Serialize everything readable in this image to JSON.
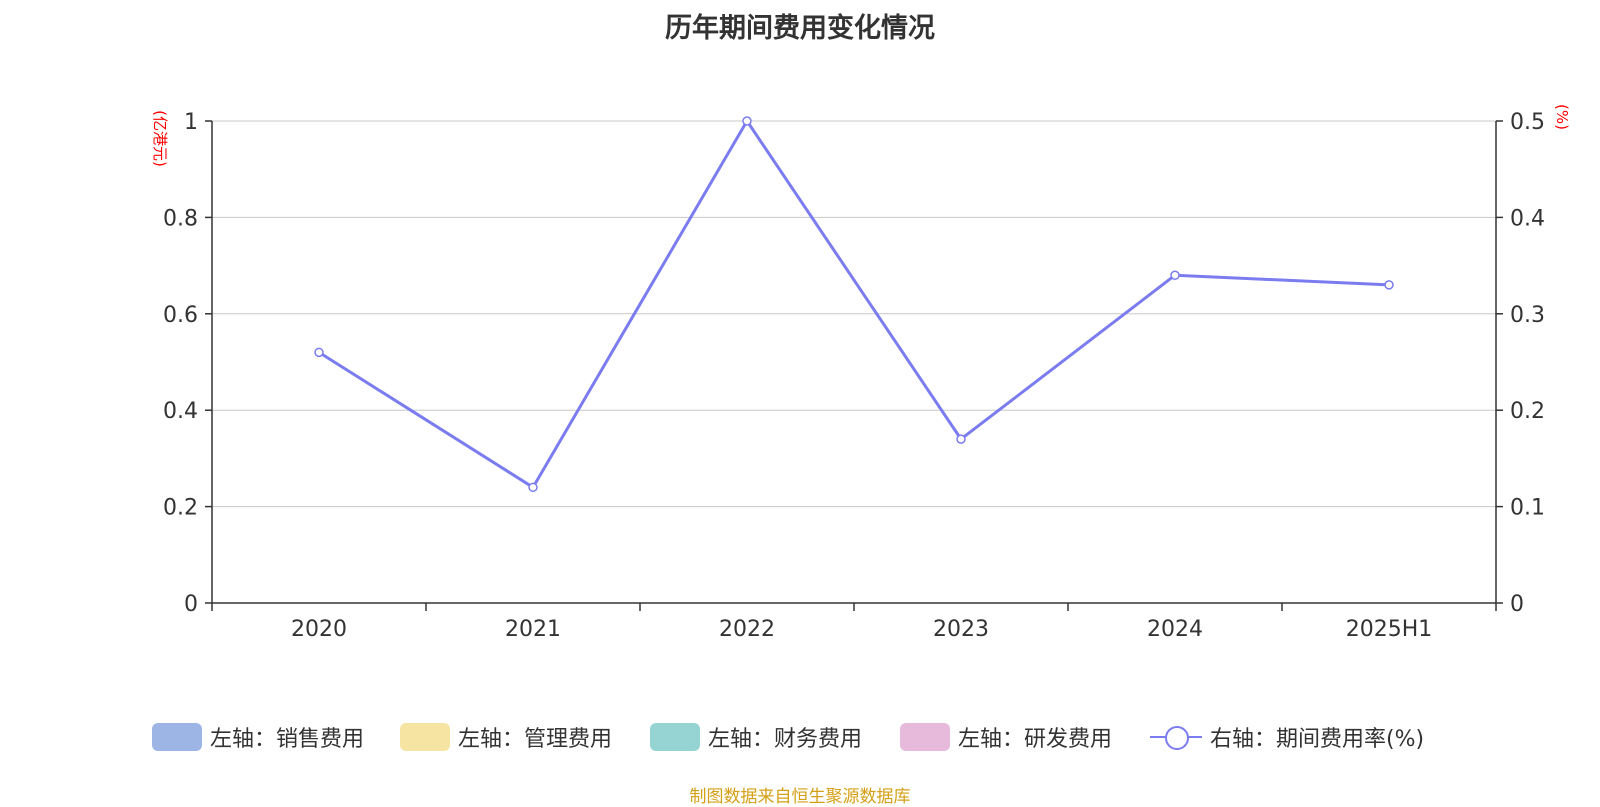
{
  "title": "历年期间费用变化情况",
  "left_axis_unit": "(亿港元)",
  "right_axis_unit": "(%)",
  "source": "制图数据来自恒生聚源数据库",
  "colors": {
    "line": "#7b7cf0",
    "grid": "#c8c8c8",
    "axis": "#333333",
    "unit_label": "#ff0000",
    "source": "#d4a017"
  },
  "legend": [
    {
      "label": "左轴：销售费用",
      "color": "#9db5e4",
      "kind": "swatch"
    },
    {
      "label": "左轴：管理费用",
      "color": "#f6e4a3",
      "kind": "swatch"
    },
    {
      "label": "左轴：财务费用",
      "color": "#96d4d4",
      "kind": "swatch"
    },
    {
      "label": "左轴：研发费用",
      "color": "#e7b9db",
      "kind": "swatch"
    },
    {
      "label": "右轴：期间费用率(%)",
      "color": "#7b7cf0",
      "kind": "line"
    }
  ],
  "chart_data": {
    "type": "line",
    "title": "历年期间费用变化情况",
    "categories": [
      "2020",
      "2021",
      "2022",
      "2023",
      "2024",
      "2025H1"
    ],
    "left_axis": {
      "ylim": [
        0,
        1
      ],
      "ticks": [
        "0",
        "0.2",
        "0.4",
        "0.6",
        "0.8",
        "1"
      ],
      "unit": "(亿港元)"
    },
    "right_axis": {
      "ylim": [
        0,
        0.5
      ],
      "ticks": [
        "0",
        "0.1",
        "0.2",
        "0.3",
        "0.4",
        "0.5"
      ],
      "unit": "(%)"
    },
    "series": [
      {
        "name": "右轴：期间费用率(%)",
        "axis": "right",
        "values": [
          0.26,
          0.12,
          0.5,
          0.17,
          0.34,
          0.33
        ]
      }
    ],
    "grid": true,
    "legend_position": "bottom"
  }
}
